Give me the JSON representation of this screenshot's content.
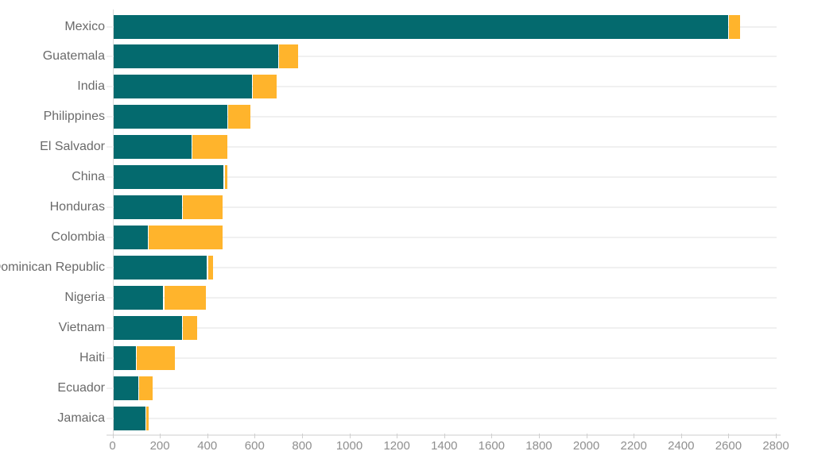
{
  "chart_data": {
    "type": "bar",
    "orientation": "horizontal",
    "stacked": true,
    "title": "",
    "xlabel": "",
    "ylabel": "",
    "legend_position": "none",
    "grid": "horizontal-row-lines",
    "categories": [
      "Mexico",
      "Guatemala",
      "India",
      "Philippines",
      "El Salvador",
      "China",
      "Honduras",
      "Colombia",
      "Dominican Republic",
      "Nigeria",
      "Vietnam",
      "Haiti",
      "Ecuador",
      "Jamaica"
    ],
    "series": [
      {
        "name": "teal",
        "color": "#046a6e",
        "values": [
          2595,
          695,
          585,
          480,
          330,
          465,
          290,
          145,
          395,
          210,
          290,
          95,
          105,
          135
        ]
      },
      {
        "name": "orange",
        "color": "#ffb42c",
        "values": [
          50,
          85,
          105,
          100,
          150,
          15,
          170,
          315,
          25,
          180,
          65,
          165,
          60,
          15
        ]
      }
    ],
    "totals": [
      2645,
      780,
      690,
      580,
      480,
      480,
      460,
      460,
      420,
      390,
      355,
      260,
      165,
      150
    ],
    "xlim": [
      0,
      2800
    ],
    "x_tick_step": 200,
    "x_ticks": [
      0,
      200,
      400,
      600,
      800,
      1000,
      1200,
      1400,
      1600,
      1800,
      2000,
      2200,
      2400,
      2600,
      2800
    ]
  },
  "colors": {
    "background": "#ffffff",
    "bar_teal": "#046a6e",
    "bar_orange": "#ffb42c",
    "row_line": "#f0f0f0",
    "baseline": "#e6e6e6",
    "axis_tick": "#cfcfcf",
    "y_axis_line": "#d9d9d9",
    "category_label": "#6a6a6a",
    "tick_label": "#8f8f8f"
  }
}
